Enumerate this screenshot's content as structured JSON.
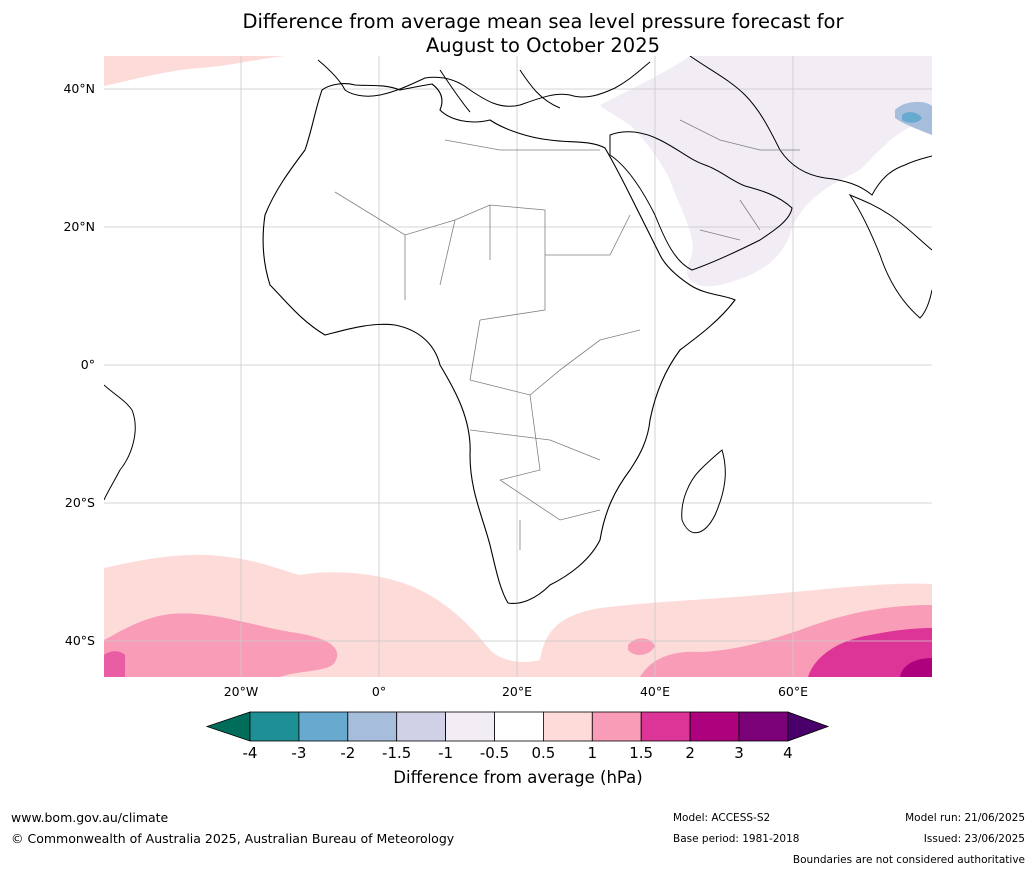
{
  "title": {
    "line1": "Difference from average mean sea level pressure forecast for",
    "line2": "August to October 2025"
  },
  "map": {
    "lat_labels": [
      "40°N",
      "20°N",
      "0°",
      "20°S",
      "40°S"
    ],
    "lon_labels": [
      "20°W",
      "0°",
      "20°E",
      "40°E",
      "60°E"
    ],
    "region": "Africa, Middle East, western Indian Ocean",
    "highlight_colors": {
      "ocean": "#ffffff",
      "coastline": "#000000",
      "border": "#808080",
      "grid": "#c8c8c8"
    }
  },
  "colorbar": {
    "ticks": [
      "-4",
      "-3",
      "-2",
      "-1.5",
      "-1",
      "-0.5",
      "0.5",
      "1",
      "1.5",
      "2",
      "3",
      "4"
    ],
    "colors": [
      "#006c5a",
      "#1f8f96",
      "#67a9cf",
      "#a6bddb",
      "#d0d1e6",
      "#f2ecf4",
      "#ffffff",
      "#fddbd9",
      "#f99cb7",
      "#dd3497",
      "#ae017e",
      "#7a0177",
      "#49006a"
    ],
    "label": "Difference from average (hPa)"
  },
  "footer": {
    "website": "www.bom.gov.au/climate",
    "copyright": "© Commonwealth of Australia 2025, Australian Bureau of Meteorology",
    "model": "Model: ACCESS-S2",
    "base_period": "Base period: 1981-2018",
    "model_run": "Model run: 21/06/2025",
    "issued": "Issued: 23/06/2025",
    "disclaimer": "Boundaries are not considered authoritative"
  }
}
